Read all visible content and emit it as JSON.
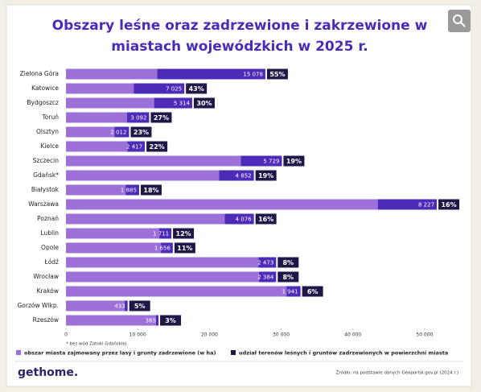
{
  "chart_data": {
    "type": "stacked-barh",
    "title": [
      "Obszary leśne oraz zadrzewione i zakrzewione w",
      "miastach wojewódzkich w 2025 r."
    ],
    "categories": [
      "Zielona Góra",
      "Katowice",
      "Bydgoszcz",
      "Toruń",
      "Olsztyn",
      "Kielce",
      "Szczecin",
      "Gdańsk*",
      "Białystok",
      "Warszawa",
      "Poznań",
      "Lublin",
      "Opole",
      "Łódź",
      "Wrocław",
      "Kraków",
      "Gorzów Wlkp.",
      "Rzeszów"
    ],
    "series": [
      {
        "color": "#9c70d8",
        "values": [
          12722,
          9475,
          12286,
          8508,
          6788,
          8583,
          24371,
          21348,
          8315,
          43473,
          22124,
          12989,
          13244,
          26827,
          26916,
          30759,
          8167,
          12535
        ]
      },
      {
        "name": "obszar miasta zajmowany przez lasy i grunty zadrzewione (w ha)",
        "color": "#4b2bb8",
        "values": [
          15078,
          7025,
          5314,
          3092,
          2012,
          2417,
          5729,
          4852,
          1885,
          8227,
          4076,
          1711,
          1656,
          2473,
          2384,
          1941,
          433,
          365
        ],
        "value_labels": [
          "15 078",
          "7 025",
          "5 314",
          "3 092",
          "2 012",
          "2 417",
          "5 729",
          "4 852",
          "1 885",
          "8 227",
          "4 076",
          "1 711",
          "1 656",
          "2 473",
          "2 384",
          "1 941",
          "433",
          "365"
        ]
      }
    ],
    "shares": {
      "name": "udział terenów leśnych i gruntów zadrzewionych w powierzchni miasta",
      "color": "#1e1848",
      "values": [
        55,
        43,
        30,
        27,
        23,
        22,
        19,
        19,
        18,
        16,
        16,
        12,
        11,
        8,
        8,
        6,
        5,
        3
      ],
      "value_labels": [
        "55%",
        "43%",
        "30%",
        "27%",
        "23%",
        "22%",
        "19%",
        "19%",
        "18%",
        "16%",
        "16%",
        "12%",
        "11%",
        "8%",
        "8%",
        "6%",
        "5%",
        "3%"
      ]
    },
    "xlim": [
      0,
      53600
    ],
    "xticks": [
      0,
      {
        "value": 10000,
        "label": "10 000"
      },
      {
        "value": 20000,
        "label": "20 000"
      },
      {
        "value": 30000,
        "label": "30 000"
      },
      {
        "value": 40000,
        "label": "40 000"
      },
      {
        "value": 50000,
        "label": "50 000"
      }
    ],
    "note": "* bez wód Zatoki Gdańskiej",
    "source": "Źródło: na podstawie danych Geoportal.gov.pl (2024 r.)",
    "logo": "gethome."
  }
}
